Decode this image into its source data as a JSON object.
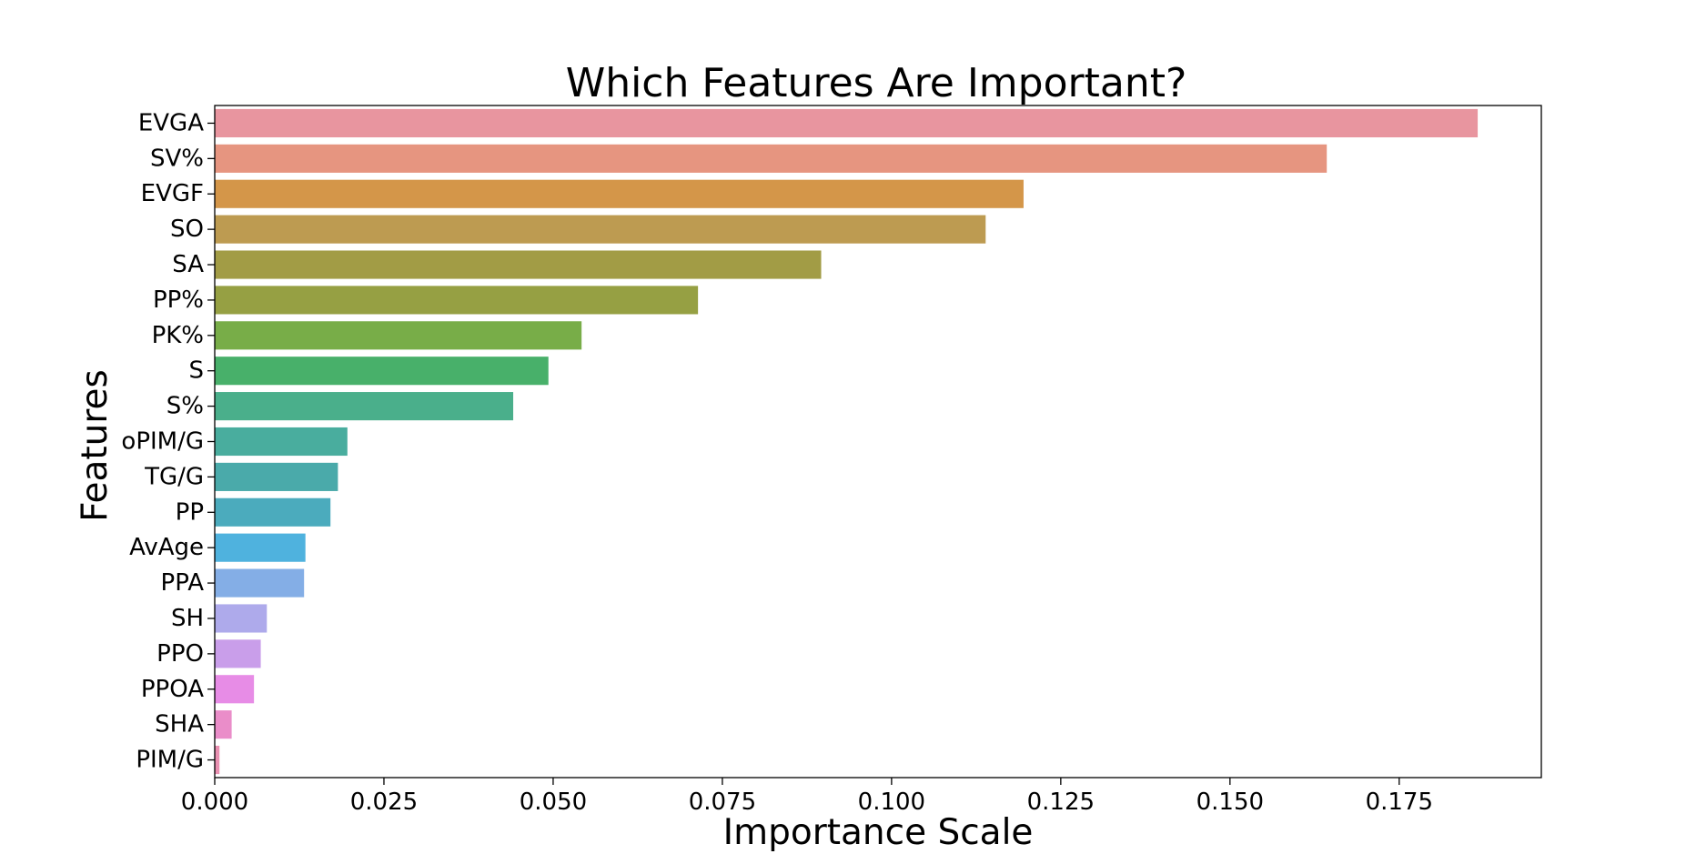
{
  "chart_data": {
    "type": "bar",
    "orientation": "horizontal",
    "title": "Which Features Are Important?",
    "xlabel": "Importance Scale",
    "ylabel": "Features",
    "xlim": [
      0,
      0.196
    ],
    "xticks": [
      0.0,
      0.025,
      0.05,
      0.075,
      0.1,
      0.125,
      0.15,
      0.175
    ],
    "xtick_labels": [
      "0.000",
      "0.025",
      "0.050",
      "0.075",
      "0.100",
      "0.125",
      "0.150",
      "0.175"
    ],
    "grid": false,
    "legend": "none",
    "categories": [
      "EVGA",
      "SV%",
      "EVGF",
      "SO",
      "SA",
      "PP%",
      "PK%",
      "S",
      "S%",
      "oPIM/G",
      "TG/G",
      "PP",
      "AvAge",
      "PPA",
      "SH",
      "PPO",
      "PPOA",
      "SHA",
      "PIM/G"
    ],
    "values": [
      0.1866,
      0.1643,
      0.1195,
      0.1139,
      0.0896,
      0.0714,
      0.0542,
      0.0493,
      0.0441,
      0.0196,
      0.0182,
      0.0171,
      0.0134,
      0.0132,
      0.0077,
      0.0068,
      0.0058,
      0.0025,
      0.0007
    ],
    "colors": [
      "#e8959f",
      "#e69580",
      "#d49649",
      "#bd9b51",
      "#a29c45",
      "#96a043",
      "#78ad48",
      "#48b06a",
      "#4aaf8b",
      "#49ad9e",
      "#4aaaaa",
      "#4babbd",
      "#4fb2de",
      "#84aee6",
      "#aeaaeb",
      "#c99eea",
      "#e78ce6",
      "#ea8dc9",
      "#e990b1"
    ]
  }
}
